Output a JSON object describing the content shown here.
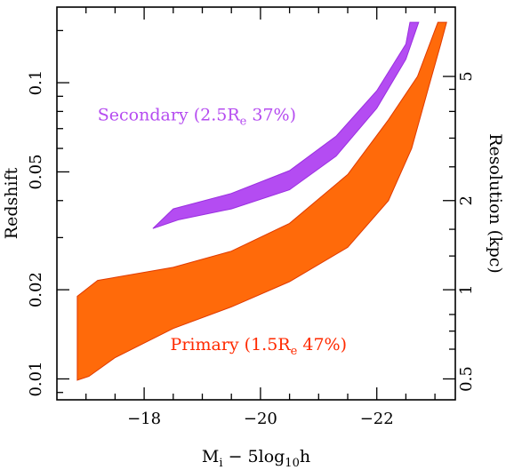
{
  "chart_data": {
    "type": "area",
    "xlabel": {
      "main": "M",
      "sub": "i",
      "rest1": " − 5log",
      "sub2": "10",
      "rest2": "h"
    },
    "ylabel_left": "Redshift",
    "ylabel_right": "Resolution (kpc)",
    "xlim": [
      -16.5,
      -23.35
    ],
    "ylim": [
      0.0085,
      0.18
    ],
    "y_scale": "log",
    "x_ticks": [
      -18,
      -20,
      -22
    ],
    "x_tick_labels": [
      "−18",
      "−20",
      "−22"
    ],
    "y_ticks": [
      0.01,
      0.02,
      0.05,
      0.1
    ],
    "y_tick_labels": [
      "0.01",
      "0.02",
      "0.05",
      "0.1"
    ],
    "right_ticks": [
      0.01,
      0.02,
      0.04,
      0.105
    ],
    "right_tick_labels": [
      "0.5",
      "1",
      "2",
      "5"
    ],
    "series": [
      {
        "name_parts": [
          "Primary (1.5R",
          "e",
          " 47%)"
        ],
        "color": "#ff6a0a",
        "edge": "#e03a00",
        "text_color": "#ff2a00",
        "label_anchor": [
          -18.45,
          0.0125
        ],
        "lower": [
          [
            -16.85,
            0.0099
          ],
          [
            -17.05,
            0.0102
          ],
          [
            -17.5,
            0.0118
          ],
          [
            -18.5,
            0.0148
          ],
          [
            -19.5,
            0.0175
          ],
          [
            -20.5,
            0.0213
          ],
          [
            -21.5,
            0.0278
          ],
          [
            -22.2,
            0.04
          ],
          [
            -22.6,
            0.06
          ],
          [
            -22.9,
            0.098
          ],
          [
            -23.1,
            0.135
          ],
          [
            -23.2,
            0.16
          ]
        ],
        "upper": [
          [
            -16.85,
            0.019
          ],
          [
            -17.2,
            0.0215
          ],
          [
            -18.5,
            0.0238
          ],
          [
            -19.5,
            0.027
          ],
          [
            -20.5,
            0.0335
          ],
          [
            -21.5,
            0.049
          ],
          [
            -22.2,
            0.075
          ],
          [
            -22.7,
            0.105
          ],
          [
            -23.05,
            0.16
          ]
        ]
      },
      {
        "name_parts": [
          "Secondary (2.5R",
          "e",
          " 37%)"
        ],
        "color": "#b44cf2",
        "edge": "#9a2fe0",
        "text_color": "#b54cf0",
        "label_anchor": [
          -17.2,
          0.0745
        ],
        "lower": [
          [
            -18.15,
            0.0322
          ],
          [
            -18.6,
            0.0345
          ],
          [
            -19.5,
            0.0375
          ],
          [
            -20.5,
            0.0435
          ],
          [
            -21.3,
            0.0565
          ],
          [
            -22.0,
            0.082
          ],
          [
            -22.5,
            0.12
          ],
          [
            -22.72,
            0.16
          ]
        ],
        "upper": [
          [
            -18.15,
            0.0322
          ],
          [
            -18.5,
            0.0375
          ],
          [
            -19.5,
            0.0423
          ],
          [
            -20.5,
            0.0505
          ],
          [
            -21.3,
            0.066
          ],
          [
            -22.0,
            0.094
          ],
          [
            -22.5,
            0.135
          ],
          [
            -22.57,
            0.16
          ]
        ]
      }
    ]
  }
}
